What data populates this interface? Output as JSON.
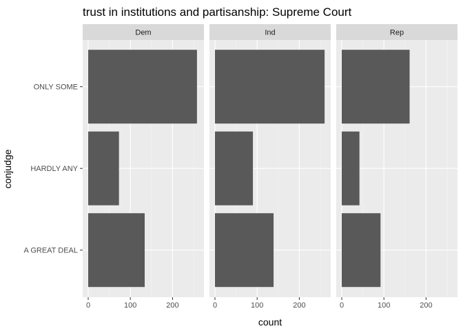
{
  "chart_data": {
    "type": "bar",
    "orientation": "horizontal",
    "title": "trust in institutions and partisanship: Supreme Court",
    "xlabel": "count",
    "ylabel": "conjudge",
    "categories": [
      "ONLY SOME",
      "HARDLY ANY",
      "A GREAT DEAL"
    ],
    "xlim": [
      0,
      260
    ],
    "xticks": [
      0,
      100,
      200
    ],
    "grid": true,
    "bar_color": "#595959",
    "panel_color": "#ebebeb",
    "strip_color": "#d9d9d9",
    "panels": [
      {
        "name": "Dem",
        "values": [
          258,
          73,
          134
        ]
      },
      {
        "name": "Ind",
        "values": [
          260,
          90,
          139
        ]
      },
      {
        "name": "Rep",
        "values": [
          161,
          42,
          92
        ]
      }
    ]
  }
}
